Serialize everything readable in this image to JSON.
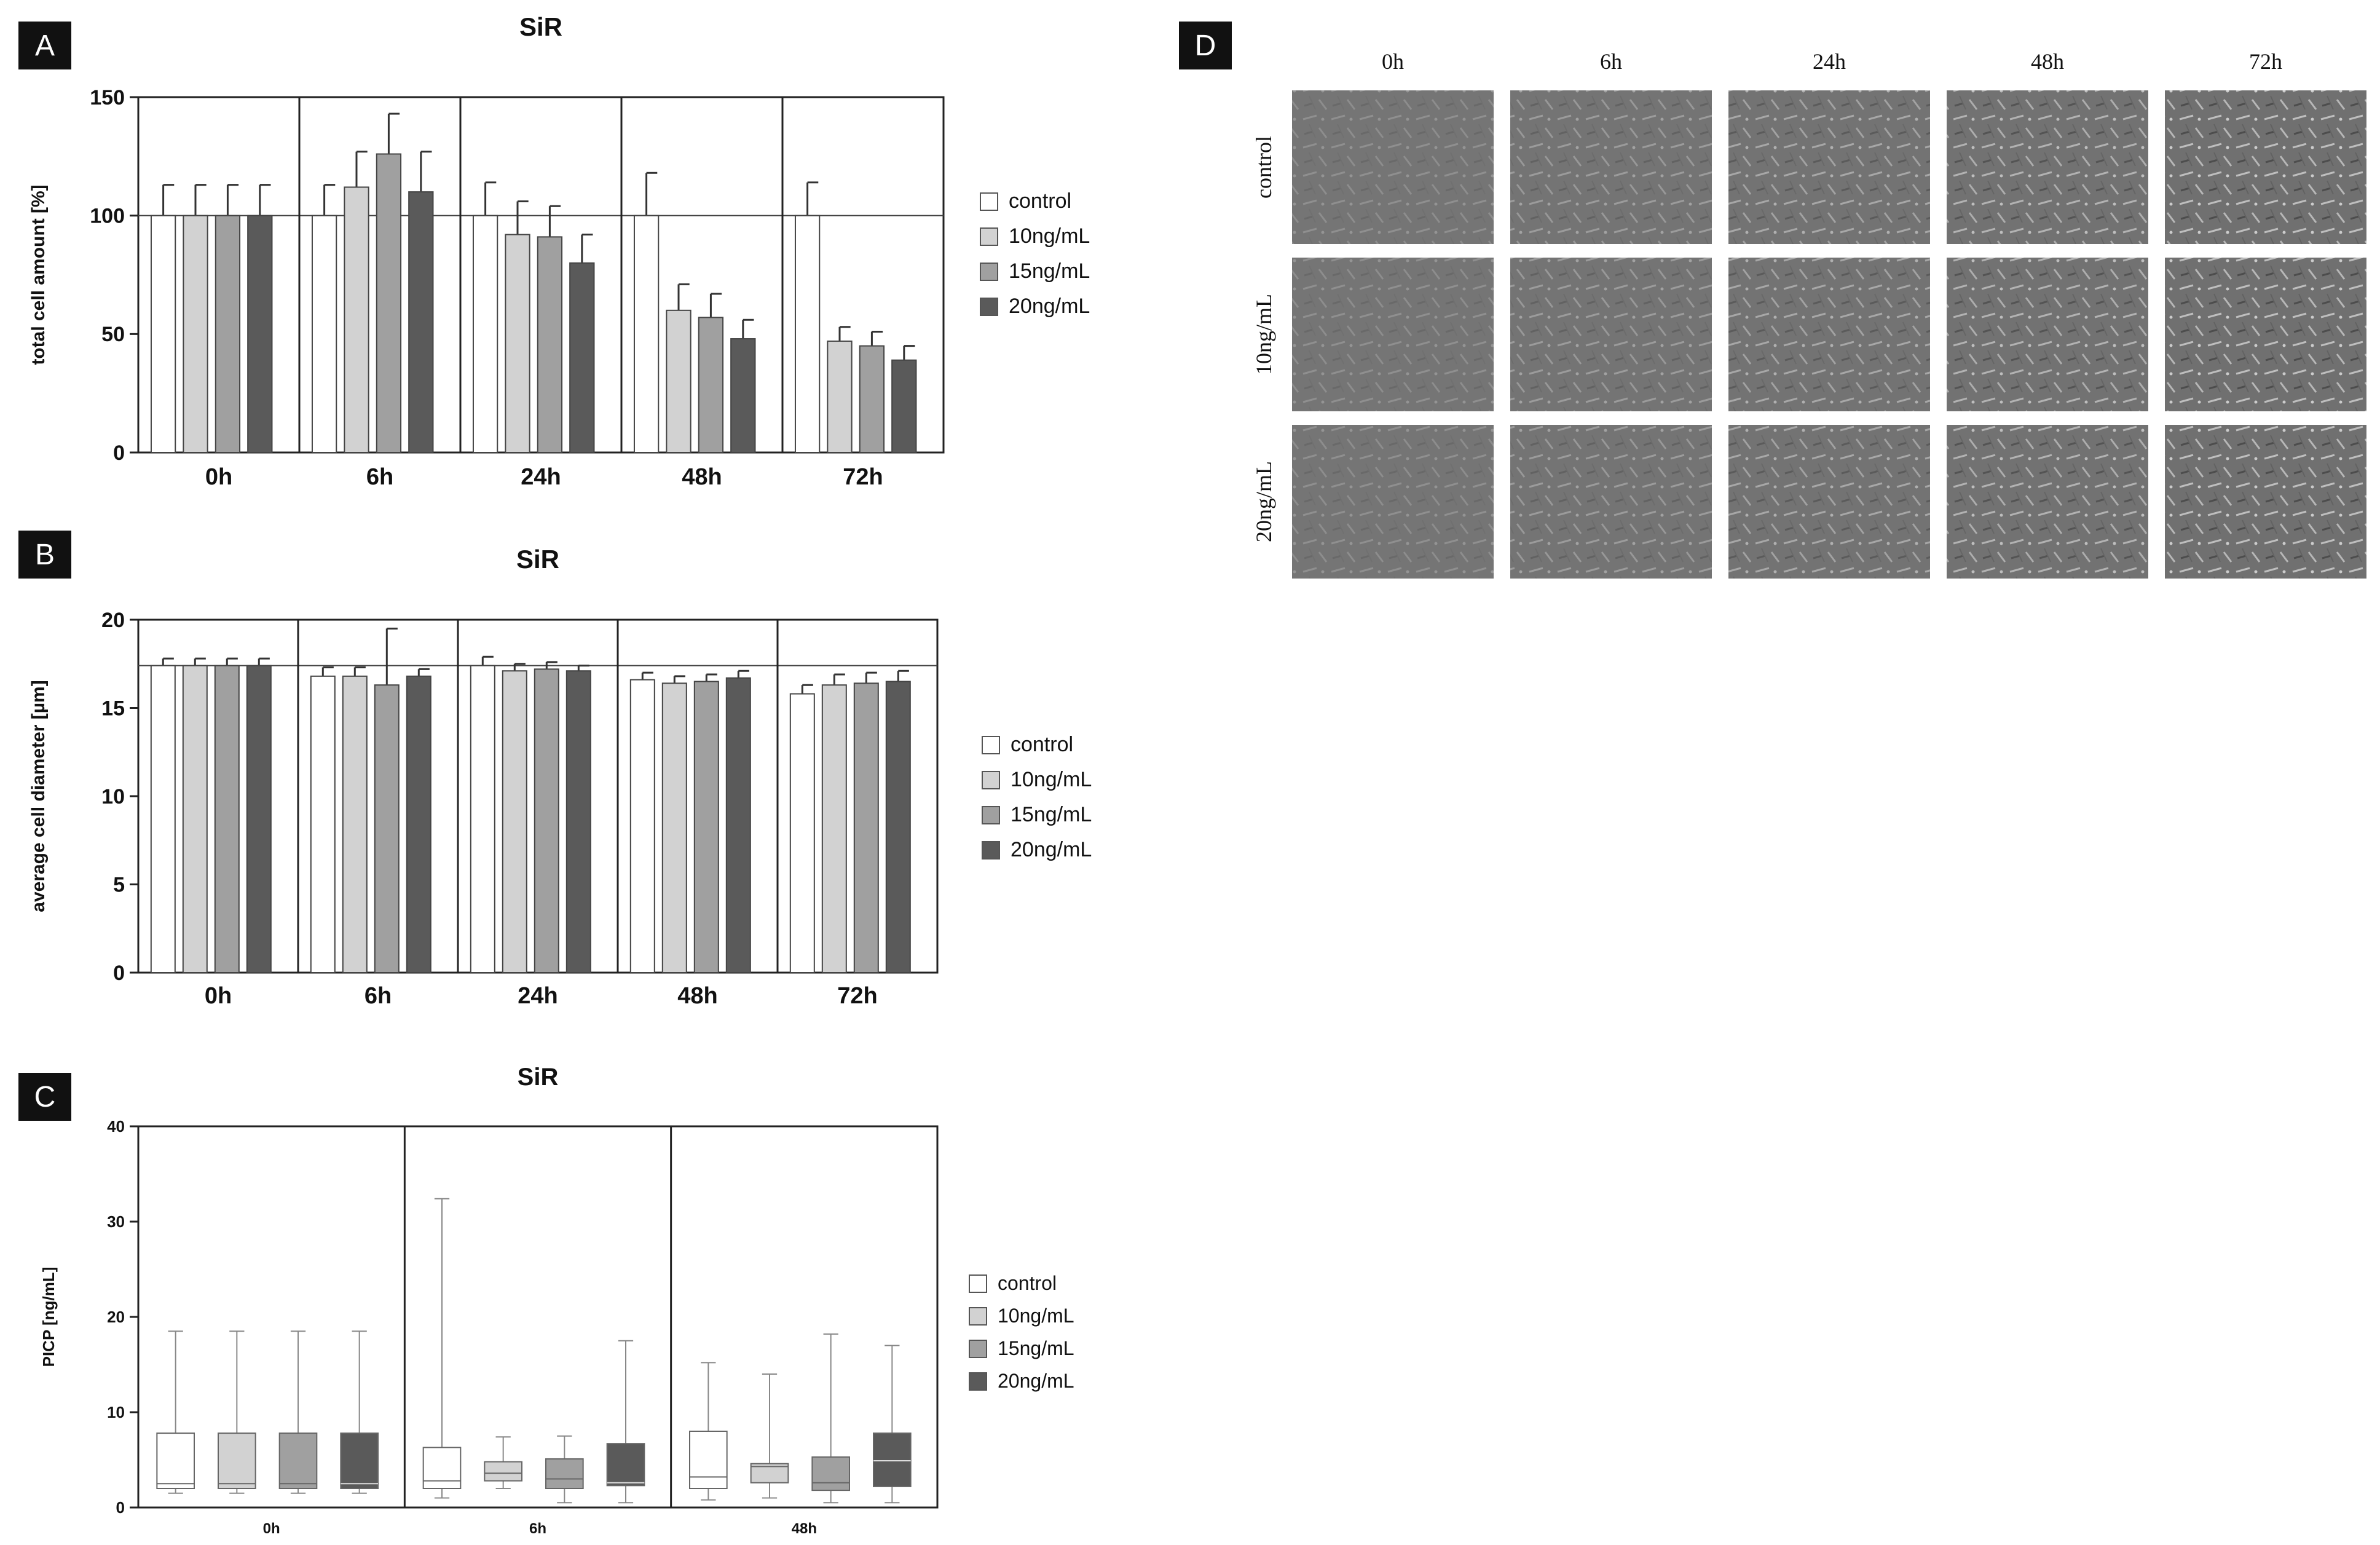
{
  "colors": {
    "control": "#ffffff",
    "10ng/mL": "#d2d2d2",
    "15ng/mL": "#a0a0a0",
    "20ng/mL": "#5a5a5a",
    "panel_label_bg": "#111111",
    "axis": "#222222"
  },
  "legend": [
    "control",
    "10ng/mL",
    "15ng/mL",
    "20ng/mL"
  ],
  "panels": {
    "A": "A",
    "B": "B",
    "C": "C",
    "D": "D"
  },
  "chart_data": [
    {
      "id": "A",
      "type": "bar",
      "title": "SiR",
      "ylabel": "total cell amount [%]",
      "xlabel": "",
      "ylim": [
        0,
        150
      ],
      "yticks": [
        0,
        50,
        100,
        150
      ],
      "reference_line": 100,
      "categories": [
        "0h",
        "6h",
        "24h",
        "48h",
        "72h"
      ],
      "series": [
        {
          "name": "control",
          "values": [
            100,
            100,
            100,
            100,
            100
          ],
          "errors": [
            13,
            13,
            14,
            18,
            14
          ]
        },
        {
          "name": "10ng/mL",
          "values": [
            100,
            112,
            92,
            60,
            47
          ],
          "errors": [
            13,
            15,
            14,
            11,
            6
          ]
        },
        {
          "name": "15ng/mL",
          "values": [
            100,
            126,
            91,
            57,
            45
          ],
          "errors": [
            13,
            17,
            13,
            10,
            6
          ]
        },
        {
          "name": "20ng/mL",
          "values": [
            100,
            110,
            80,
            48,
            39
          ],
          "errors": [
            13,
            17,
            12,
            8,
            6
          ]
        }
      ]
    },
    {
      "id": "B",
      "type": "bar",
      "title": "SiR",
      "ylabel": "average cell diameter [µm]",
      "xlabel": "",
      "ylim": [
        0,
        20
      ],
      "yticks": [
        0,
        5,
        10,
        15,
        20
      ],
      "reference_line": 17.4,
      "categories": [
        "0h",
        "6h",
        "24h",
        "48h",
        "72h"
      ],
      "series": [
        {
          "name": "control",
          "values": [
            17.4,
            16.8,
            17.4,
            16.6,
            15.8
          ],
          "errors": [
            0.4,
            0.5,
            0.5,
            0.4,
            0.5
          ]
        },
        {
          "name": "10ng/mL",
          "values": [
            17.4,
            16.8,
            17.1,
            16.4,
            16.3
          ],
          "errors": [
            0.4,
            0.5,
            0.4,
            0.4,
            0.6
          ]
        },
        {
          "name": "15ng/mL",
          "values": [
            17.4,
            16.3,
            17.2,
            16.5,
            16.4
          ],
          "errors": [
            0.4,
            3.2,
            0.4,
            0.4,
            0.6
          ]
        },
        {
          "name": "20ng/mL",
          "values": [
            17.4,
            16.8,
            17.1,
            16.7,
            16.5
          ],
          "errors": [
            0.4,
            0.4,
            0.3,
            0.4,
            0.6
          ]
        }
      ]
    },
    {
      "id": "C",
      "type": "boxplot",
      "title": "SiR",
      "ylabel": "PICP [ng/mL]",
      "xlabel": "",
      "ylim": [
        0,
        40
      ],
      "yticks": [
        0,
        10,
        20,
        30,
        40
      ],
      "categories": [
        "0h",
        "6h",
        "48h"
      ],
      "series": [
        {
          "name": "control",
          "boxes": [
            [
              1.5,
              2,
              2.5,
              7.8,
              18.5
            ],
            [
              1,
              2,
              2.8,
              6.3,
              32.4
            ],
            [
              0.8,
              2,
              3.2,
              8,
              15.2
            ]
          ]
        },
        {
          "name": "10ng/mL",
          "boxes": [
            [
              1.5,
              2,
              2.5,
              7.8,
              18.5
            ],
            [
              2,
              2.8,
              3.6,
              4.8,
              7.4
            ],
            [
              1,
              2.6,
              4.3,
              4.6,
              14
            ]
          ]
        },
        {
          "name": "15ng/mL",
          "boxes": [
            [
              1.5,
              2,
              2.5,
              7.8,
              18.5
            ],
            [
              0.5,
              2,
              3,
              5.1,
              7.5
            ],
            [
              0.5,
              1.8,
              2.6,
              5.3,
              18.2
            ]
          ]
        },
        {
          "name": "20ng/mL",
          "boxes": [
            [
              1.5,
              2,
              2.5,
              7.8,
              18.5
            ],
            [
              0.5,
              2.3,
              2.6,
              6.7,
              17.5
            ],
            [
              0.5,
              2.2,
              4.9,
              7.8,
              17
            ]
          ]
        }
      ]
    }
  ],
  "micrographs": {
    "columns": [
      "0h",
      "6h",
      "24h",
      "48h",
      "72h"
    ],
    "rows": [
      "control",
      "10ng/mL",
      "20ng/mL"
    ]
  }
}
